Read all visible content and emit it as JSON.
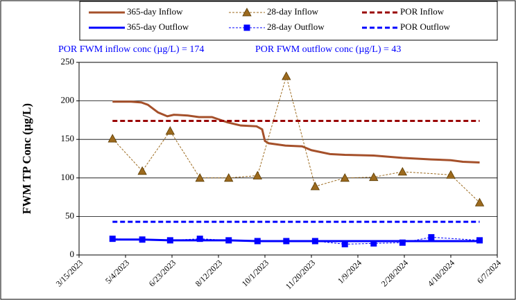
{
  "chart_data": {
    "type": "line",
    "y_label": "FWM TP Conc (µg/L)",
    "annotations": [
      "POR FWM inflow conc (µg/L) = 174",
      "POR FWM outflow conc (µg/L) = 43"
    ],
    "xlim": [
      "3/15/2023",
      "6/7/2024"
    ],
    "xticks": [
      "3/15/2023",
      "5/4/2023",
      "6/23/2023",
      "8/12/2023",
      "10/1/2023",
      "11/20/2023",
      "1/9/2024",
      "2/28/2024",
      "4/18/2024",
      "6/7/2024"
    ],
    "ylim": [
      0,
      250
    ],
    "yticks": [
      0,
      50,
      100,
      150,
      200,
      250
    ],
    "grid": true,
    "legend": "top",
    "series": [
      {
        "name": "365-day Inflow",
        "color": "#a5502a",
        "line": "solid",
        "marker": "none",
        "x": [
          "4/20/2023",
          "5/10/2023",
          "5/21/2023",
          "5/28/2023",
          "6/8/2023",
          "6/18/2023",
          "6/25/2023",
          "7/10/2023",
          "7/22/2023",
          "8/5/2023",
          "8/22/2023",
          "9/5/2023",
          "9/22/2023",
          "9/28/2023",
          "10/1/2023",
          "10/5/2023",
          "10/23/2023",
          "11/10/2023",
          "11/20/2023",
          "12/10/2023",
          "12/26/2023",
          "1/26/2024",
          "2/26/2024",
          "3/28/2024",
          "4/18/2024",
          "5/1/2024",
          "5/19/2024"
        ],
        "values": [
          199,
          199,
          198,
          195,
          185,
          180,
          182,
          181,
          179,
          179,
          172,
          168,
          167,
          163,
          148,
          145,
          142,
          141,
          136,
          131,
          130,
          129,
          126,
          124,
          123,
          121,
          120
        ]
      },
      {
        "name": "28-day Inflow",
        "color": "#9c6a1e",
        "line": "dashed",
        "marker": "triangle",
        "x": [
          "4/20/2023",
          "5/22/2023",
          "6/21/2023",
          "7/23/2023",
          "8/23/2023",
          "9/23/2023",
          "10/24/2023",
          "11/24/2023",
          "12/26/2023",
          "1/26/2024",
          "2/26/2024",
          "4/18/2024",
          "5/19/2024"
        ],
        "values": [
          151,
          109,
          161,
          100,
          100,
          103,
          232,
          89,
          100,
          101,
          108,
          104,
          68
        ]
      },
      {
        "name": "POR Inflow",
        "color": "#990000",
        "line": "bigdash",
        "marker": "none",
        "x": [
          "4/20/2023",
          "5/19/2024"
        ],
        "values": [
          174,
          174
        ]
      },
      {
        "name": "365-day Outflow",
        "color": "#0000ff",
        "line": "solid",
        "marker": "none",
        "x": [
          "4/20/2023",
          "5/22/2023",
          "6/21/2023",
          "7/23/2023",
          "8/23/2023",
          "9/23/2023",
          "10/24/2023",
          "11/24/2023",
          "12/26/2023",
          "1/26/2024",
          "2/26/2024",
          "3/28/2024",
          "5/19/2024"
        ],
        "values": [
          20,
          20,
          19,
          19,
          19,
          18,
          18,
          18,
          18,
          18,
          18,
          18,
          18
        ]
      },
      {
        "name": "28-day Outflow",
        "color": "#0000ff",
        "line": "dashed",
        "marker": "square",
        "x": [
          "4/20/2023",
          "5/22/2023",
          "6/21/2023",
          "7/23/2023",
          "8/23/2023",
          "9/23/2023",
          "10/24/2023",
          "11/24/2023",
          "12/26/2023",
          "1/26/2024",
          "2/26/2024",
          "3/28/2024",
          "5/19/2024"
        ],
        "values": [
          21,
          20,
          19,
          21,
          19,
          18,
          18,
          18,
          14,
          15,
          16,
          23,
          19
        ]
      },
      {
        "name": "POR Outflow",
        "color": "#0000ff",
        "line": "bigdash",
        "marker": "none",
        "x": [
          "4/20/2023",
          "5/19/2024"
        ],
        "values": [
          43,
          43
        ]
      }
    ]
  }
}
